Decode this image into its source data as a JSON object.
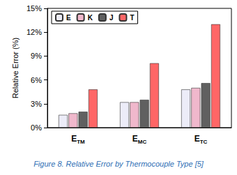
{
  "chart_data": {
    "type": "bar",
    "title": "Figure 8. Relative Error by Thermocouple Type [5]",
    "y_label": "Relative Error (%)",
    "categories": [
      "ETM",
      "EMC",
      "ETC"
    ],
    "series": [
      {
        "name": "E",
        "color": "#ececf8",
        "values": [
          1.6,
          3.2,
          4.8
        ]
      },
      {
        "name": "K",
        "color": "#f0b8cc",
        "values": [
          1.8,
          3.2,
          5.0
        ]
      },
      {
        "name": "J",
        "color": "#606060",
        "values": [
          2.0,
          3.5,
          5.6
        ]
      },
      {
        "name": "T",
        "color": "#ff6666",
        "values": [
          4.8,
          8.1,
          13.0
        ]
      }
    ],
    "ylim": [
      0,
      15
    ],
    "yticks": [
      {
        "value": 0,
        "label": "0%"
      },
      {
        "value": 3,
        "label": "3%"
      },
      {
        "value": 6,
        "label": "6%"
      },
      {
        "value": 9,
        "label": "9%"
      },
      {
        "value": 12,
        "label": "12%"
      },
      {
        "value": 15,
        "label": "15%"
      }
    ],
    "grid": false,
    "legend": "upper left"
  }
}
